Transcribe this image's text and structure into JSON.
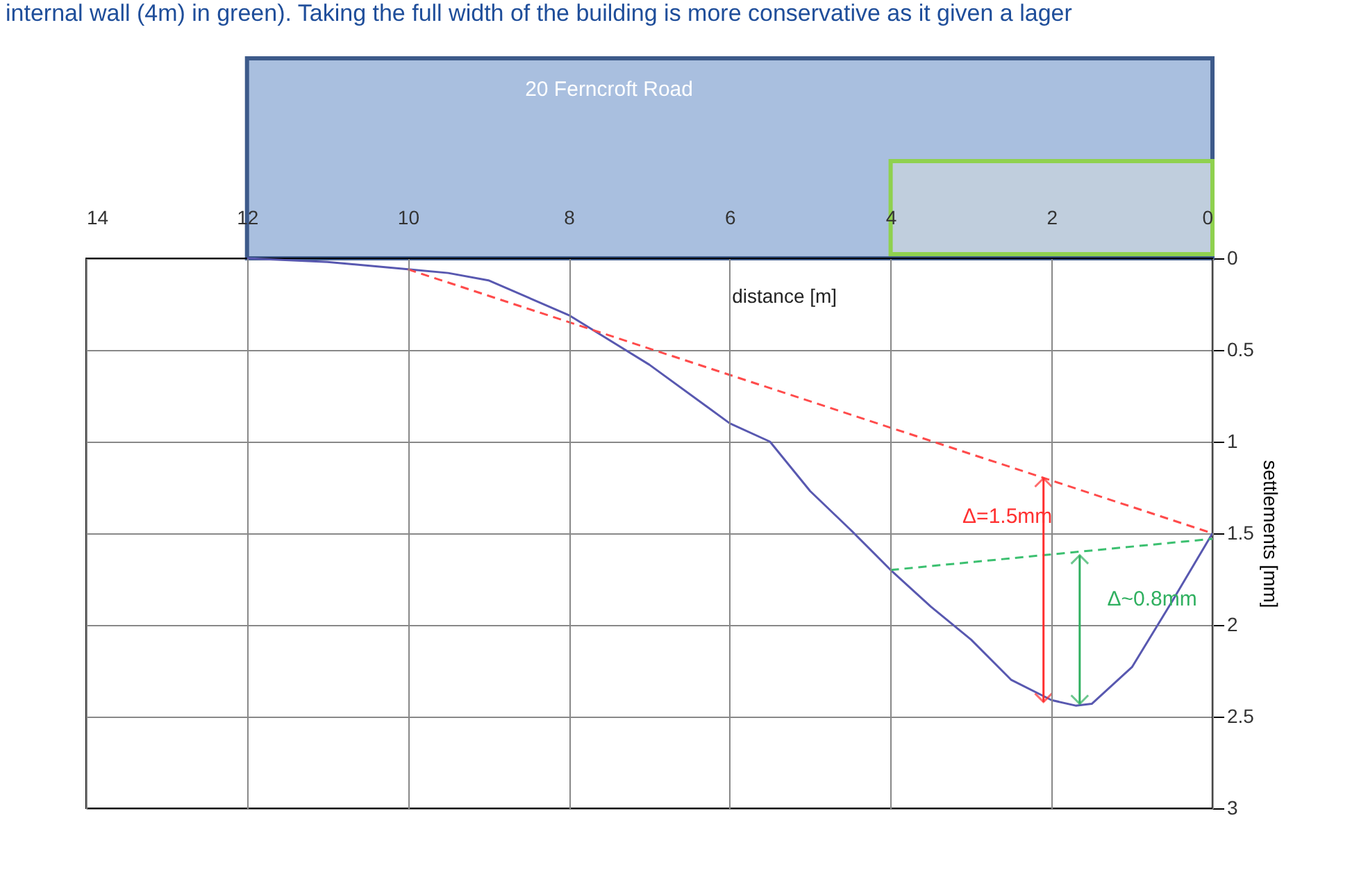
{
  "chart_data": {
    "type": "line",
    "xlabel": "distance [m]",
    "ylabel": "settlements [mm]",
    "xlim": [
      14,
      0
    ],
    "xticks": [
      14,
      12,
      10,
      8,
      6,
      4,
      2,
      0
    ],
    "ylim": [
      3,
      0
    ],
    "yticks": [
      0,
      0.5,
      1,
      1.5,
      2,
      2.5,
      3
    ],
    "grid": true,
    "series": [
      {
        "x": [
          12,
          11,
          10,
          9.5,
          9,
          8,
          7,
          6,
          5.5,
          5,
          4.5,
          4,
          3.5,
          3,
          2.5,
          2,
          1.7,
          1.5,
          1,
          0.5,
          0
        ],
        "values": [
          0,
          0.02,
          0.06,
          0.08,
          0.12,
          0.31,
          0.58,
          0.9,
          1,
          1.27,
          1.48,
          1.7,
          1.9,
          2.08,
          2.3,
          2.41,
          2.44,
          2.43,
          2.23,
          1.87,
          1.5
        ],
        "color": "#5858b0",
        "line_style": "solid"
      },
      {
        "type": "line",
        "x": [
          10,
          0
        ],
        "values": [
          0.06,
          1.5
        ],
        "color": "#ff4b4b",
        "line_style": "dashed"
      },
      {
        "type": "line",
        "x": [
          4,
          0
        ],
        "values": [
          1.7,
          1.53
        ],
        "color": "#3cc070",
        "line_style": "dashed"
      }
    ],
    "annotations": [
      "internal wall (4m) in green). Taking the full width of the building is more conservative as it given a lager",
      "20 Ferncroft Road",
      {
        "text": "Δ=1.5mm",
        "x": 2.1,
        "y": 1.2
      },
      "Δ~0.8mm"
    ]
  }
}
